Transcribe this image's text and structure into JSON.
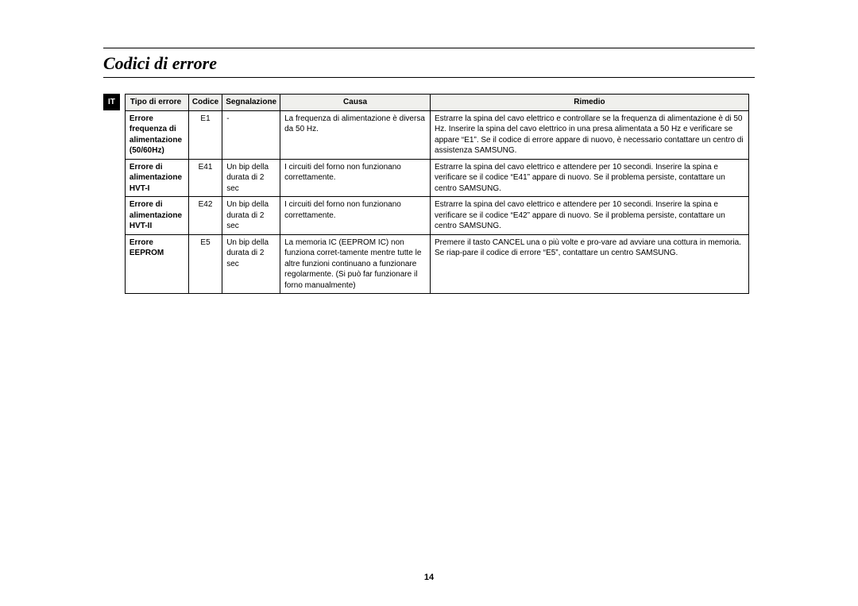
{
  "title": "Codici di errore",
  "langTab": "IT",
  "pageNumber": "14",
  "table": {
    "headers": {
      "type": "Tipo di errore",
      "code": "Codice",
      "signal": "Segnalazione",
      "cause": "Causa",
      "remedy": "Rimedio"
    },
    "rows": [
      {
        "type": "Errore frequenza di  alimentazione (50/60Hz)",
        "code": "E1",
        "signal": "-",
        "cause": "La frequenza di alimentazione è diversa da 50 Hz.",
        "remedy": "Estrarre la spina del cavo elettrico e controllare se la frequenza di alimentazione è di 50 Hz.\nInserire la spina del cavo elettrico in una presa alimentata a 50 Hz e verificare se appare “E1”. Se il codice di errore appare di nuovo, è necessario contattare un centro di assistenza SAMSUNG."
      },
      {
        "type": "Errore di alimentazione HVT-I",
        "code": "E41",
        "signal": "Un bip della durata di 2 sec",
        "cause": "I circuiti del forno non funzionano correttamente.",
        "remedy": "Estrarre la spina del cavo elettrico e attendere per 10 secondi.\nInserire la spina e verificare se il codice “E41” appare di nuovo. Se il problema persiste, contattare un centro SAMSUNG."
      },
      {
        "type": "Errore di alimentazione HVT-II",
        "code": "E42",
        "signal": "Un bip della durata di 2 sec",
        "cause": "I circuiti del forno non funzionano correttamente.",
        "remedy": "Estrarre la spina del cavo elettrico e attendere per 10 secondi.\nInserire la spina e verificare se il codice “E42” appare di nuovo. Se il problema persiste, contattare un centro SAMSUNG."
      },
      {
        "type": "Errore EEPROM",
        "code": "E5",
        "signal": "Un bip della durata di 2 sec",
        "cause": "La memoria IC (EEPROM IC) non funziona corret-tamente mentre tutte le altre funzioni continuano a funzionare regolarmente. (Si può far funzionare il forno manualmente)",
        "remedy": "Premere il tasto CANCEL una o più volte e pro-vare ad avviare una cottura in memoria. Se riap-pare il codice di errore “E5”, contattare un centro SAMSUNG."
      }
    ]
  }
}
